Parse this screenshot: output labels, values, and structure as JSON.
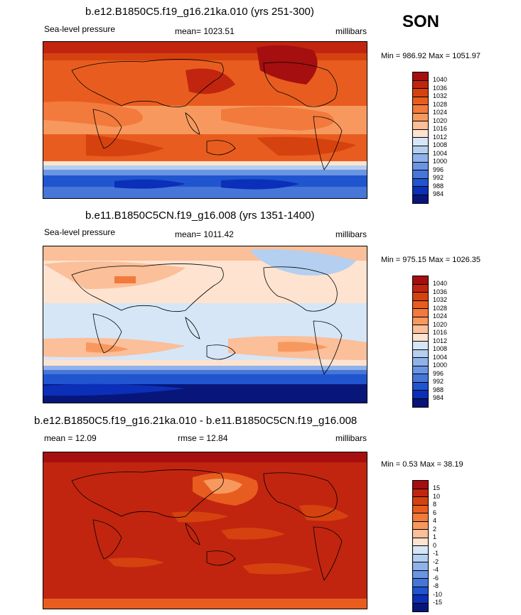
{
  "season": "SON",
  "panels": [
    {
      "title": "b.e12.B1850C5.f19_g16.21ka.010 (yrs 251-300)",
      "left_label": "Sea-level pressure",
      "center_label": "mean= 1023.51",
      "units": "millibars",
      "minmax": "Min = 986.92 Max = 1051.97",
      "colorbar": {
        "labels": [
          "1040",
          "1036",
          "1032",
          "1028",
          "1024",
          "1020",
          "1016",
          "1012",
          "1008",
          "1004",
          "1000",
          "996",
          "992",
          "988",
          "984"
        ],
        "colors": [
          "#a50f0f",
          "#c1250f",
          "#d6420f",
          "#e85d1f",
          "#f27a3c",
          "#f7995e",
          "#fbbf99",
          "#fde3d0",
          "#d6e6f7",
          "#b4cff0",
          "#8fb2ea",
          "#6b95e3",
          "#4676d8",
          "#2055cf",
          "#0b2fb8",
          "#08167a"
        ]
      }
    },
    {
      "title": "b.e11.B1850C5CN.f19_g16.008 (yrs 1351-1400)",
      "left_label": "Sea-level pressure",
      "center_label": "mean= 1011.42",
      "units": "millibars",
      "minmax": "Min = 975.15 Max = 1026.35",
      "colorbar": {
        "labels": [
          "1040",
          "1036",
          "1032",
          "1028",
          "1024",
          "1020",
          "1016",
          "1012",
          "1008",
          "1004",
          "1000",
          "996",
          "992",
          "988",
          "984"
        ],
        "colors": [
          "#a50f0f",
          "#c1250f",
          "#d6420f",
          "#e85d1f",
          "#f27a3c",
          "#f7995e",
          "#fbbf99",
          "#fde3d0",
          "#d6e6f7",
          "#b4cff0",
          "#8fb2ea",
          "#6b95e3",
          "#4676d8",
          "#2055cf",
          "#0b2fb8",
          "#08167a"
        ]
      }
    },
    {
      "title": "b.e12.B1850C5.f19_g16.21ka.010 - b.e11.B1850C5CN.f19_g16.008",
      "left_label": "mean =  12.09",
      "center_label": "rmse =  12.84",
      "units": "millibars",
      "minmax": "Min =   0.53 Max =  38.19",
      "colorbar": {
        "labels": [
          "15",
          "10",
          "8",
          "6",
          "4",
          "2",
          "1",
          "0",
          "-1",
          "-2",
          "-4",
          "-6",
          "-8",
          "-10",
          "-15"
        ],
        "colors": [
          "#a50f0f",
          "#c1250f",
          "#d6420f",
          "#e85d1f",
          "#f27a3c",
          "#f7995e",
          "#fbbf99",
          "#fde3d0",
          "#d6e6f7",
          "#b4cff0",
          "#8fb2ea",
          "#6b95e3",
          "#4676d8",
          "#2055cf",
          "#0b2fb8",
          "#08167a"
        ]
      }
    }
  ]
}
